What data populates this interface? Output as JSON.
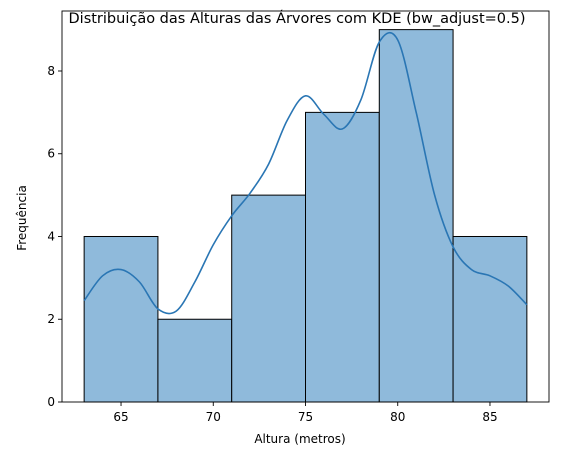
{
  "chart_data": {
    "type": "bar",
    "title": "Distribuição das Alturas das Árvores com KDE (bw_adjust=0.5)",
    "xlabel": "Altura (metros)",
    "ylabel": "Frequência",
    "xlim": [
      61.8,
      88.2
    ],
    "ylim": [
      0,
      9.45
    ],
    "x_ticks": [
      65,
      70,
      75,
      80,
      85
    ],
    "y_ticks": [
      0,
      2,
      4,
      6,
      8
    ],
    "bins": [
      {
        "start": 63,
        "end": 67,
        "count": 4
      },
      {
        "start": 67,
        "end": 71,
        "count": 2
      },
      {
        "start": 71,
        "end": 75,
        "count": 5
      },
      {
        "start": 75,
        "end": 79,
        "count": 7
      },
      {
        "start": 79,
        "end": 83,
        "count": 9
      },
      {
        "start": 83,
        "end": 87,
        "count": 4
      }
    ],
    "kde": {
      "x": [
        63,
        64,
        65,
        66,
        67,
        68,
        69,
        70,
        71,
        72,
        73,
        74,
        75,
        76,
        77,
        78,
        79,
        80,
        81,
        82,
        83,
        84,
        85,
        86,
        87
      ],
      "y": [
        2.45,
        3.05,
        3.2,
        2.9,
        2.25,
        2.2,
        2.9,
        3.8,
        4.5,
        5.05,
        5.75,
        6.8,
        7.4,
        6.95,
        6.6,
        7.3,
        8.7,
        8.75,
        7.0,
        5.0,
        3.75,
        3.2,
        3.05,
        2.8,
        2.35
      ]
    },
    "grid": false,
    "colors": {
      "bar_fill": "#8fbadb",
      "bar_edge": "#000000",
      "kde_line": "#2a76b4"
    }
  }
}
